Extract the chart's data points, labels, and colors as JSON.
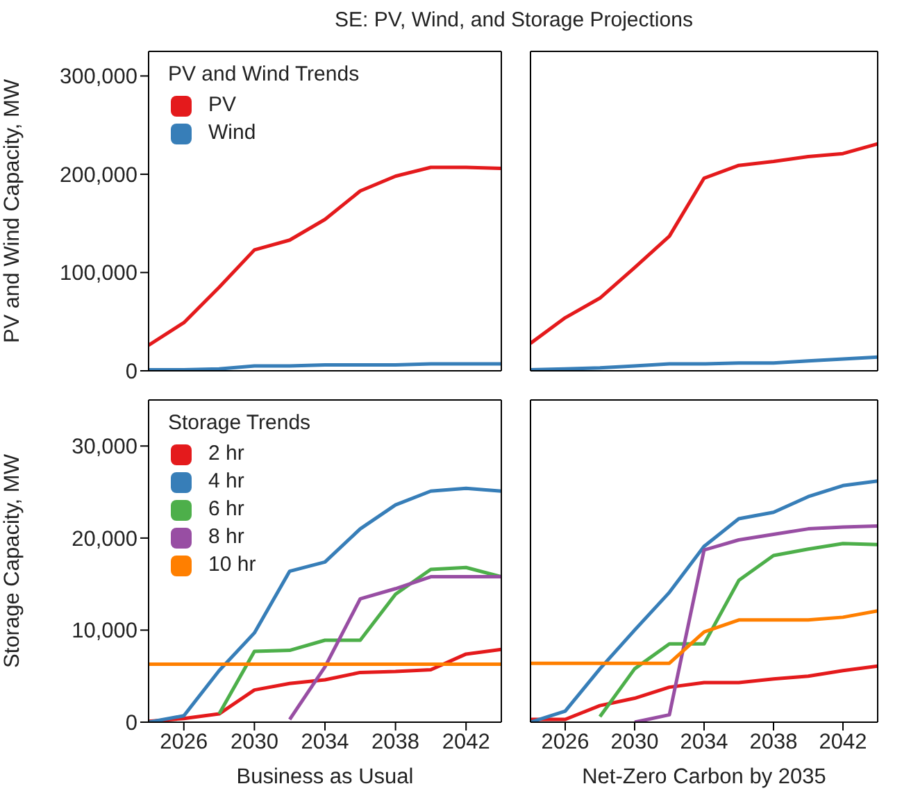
{
  "chart_data": [
    {
      "type": "line",
      "title": "SE: PV, Wind, and Storage Projections",
      "ylabel": "PV and Wind Capacity, MW",
      "legend_title": "PV and Wind Trends",
      "legend": "top left",
      "grid": false,
      "tick_labels": "y",
      "x": [
        2024,
        2026,
        2028,
        2030,
        2032,
        2034,
        2036,
        2038,
        2040,
        2042,
        2044
      ],
      "xlim": [
        2024,
        2044
      ],
      "ylim": [
        0,
        325000
      ],
      "yticks": [
        0,
        {
          "value": 100000,
          "label": "100,000"
        },
        {
          "value": 200000,
          "label": "200,000"
        },
        {
          "value": 300000,
          "label": "300,000"
        }
      ],
      "series": [
        {
          "name": "PV",
          "color": "#e41a1c",
          "values": [
            26000,
            49000,
            85000,
            123000,
            133000,
            154000,
            183000,
            198000,
            207000,
            207000,
            206000
          ]
        },
        {
          "name": "Wind",
          "color": "#377eb8",
          "values": [
            1000,
            1000,
            2000,
            5000,
            5000,
            6000,
            6000,
            6000,
            7000,
            7000,
            7000
          ]
        }
      ]
    },
    {
      "type": "line",
      "grid": false,
      "tick_labels": false,
      "x": [
        2024,
        2026,
        2028,
        2030,
        2032,
        2034,
        2036,
        2038,
        2040,
        2042,
        2044
      ],
      "xlim": [
        2024,
        2044
      ],
      "ylim": [
        0,
        325000
      ],
      "series": [
        {
          "color": "#e41a1c",
          "values": [
            28000,
            54000,
            74000,
            105000,
            137000,
            196000,
            209000,
            213000,
            218000,
            221000,
            231000
          ]
        },
        {
          "color": "#377eb8",
          "values": [
            1000,
            2000,
            3000,
            5000,
            7000,
            7000,
            8000,
            8000,
            10000,
            12000,
            14000
          ]
        }
      ]
    },
    {
      "type": "line",
      "ylabel": "Storage Capacity, MW",
      "xlabel": "Business as Usual",
      "legend_title": "Storage Trends",
      "legend": "top left",
      "grid": false,
      "x": [
        2024,
        2026,
        2028,
        2030,
        2032,
        2034,
        2036,
        2038,
        2040,
        2042,
        2044
      ],
      "xlim": [
        2024,
        2044
      ],
      "xticks": [
        2026,
        2030,
        2034,
        2038,
        2042
      ],
      "ylim": [
        0,
        35000
      ],
      "yticks": [
        0,
        {
          "value": 10000,
          "label": "10,000"
        },
        {
          "value": 20000,
          "label": "20,000"
        },
        {
          "value": 30000,
          "label": "30,000"
        }
      ],
      "series": [
        {
          "name": "2 hr",
          "color": "#e41a1c",
          "values": [
            100,
            400,
            900,
            3500,
            4200,
            4600,
            5400,
            5500,
            5700,
            7400,
            7900
          ]
        },
        {
          "name": "4 hr",
          "color": "#377eb8",
          "values": [
            0,
            700,
            5600,
            9700,
            16400,
            17400,
            21000,
            23600,
            25100,
            25400,
            25100
          ]
        },
        {
          "name": "6 hr",
          "color": "#4daf4a",
          "values": [
            null,
            null,
            900,
            7700,
            7800,
            8900,
            8900,
            13900,
            16600,
            16800,
            15800
          ]
        },
        {
          "name": "8 hr",
          "color": "#984ea3",
          "values": [
            null,
            null,
            null,
            null,
            300,
            6000,
            13400,
            14500,
            15800,
            15800,
            15800
          ]
        },
        {
          "name": "10 hr",
          "color": "#ff7f00",
          "values": [
            6300,
            6300,
            6300,
            6300,
            6300,
            6300,
            6300,
            6300,
            6300,
            6300,
            6300
          ]
        }
      ]
    },
    {
      "type": "line",
      "xlabel": "Net-Zero Carbon by 2035",
      "grid": false,
      "tick_labels": "x",
      "x": [
        2024,
        2026,
        2028,
        2030,
        2032,
        2034,
        2036,
        2038,
        2040,
        2042,
        2044
      ],
      "xlim": [
        2024,
        2044
      ],
      "xticks": [
        2026,
        2030,
        2034,
        2038,
        2042
      ],
      "ylim": [
        0,
        35000
      ],
      "series": [
        {
          "color": "#e41a1c",
          "values": [
            300,
            300,
            1800,
            2600,
            3800,
            4300,
            4300,
            4700,
            5000,
            5600,
            6100
          ]
        },
        {
          "color": "#377eb8",
          "values": [
            0,
            1200,
            5800,
            10000,
            14100,
            19100,
            22100,
            22800,
            24500,
            25700,
            26200
          ]
        },
        {
          "color": "#4daf4a",
          "values": [
            null,
            null,
            600,
            5800,
            8500,
            8500,
            15400,
            18100,
            18800,
            19400,
            19300
          ]
        },
        {
          "color": "#984ea3",
          "values": [
            null,
            null,
            null,
            0,
            800,
            18700,
            19800,
            20400,
            21000,
            21200,
            21300
          ]
        },
        {
          "color": "#ff7f00",
          "values": [
            6400,
            6400,
            6400,
            6400,
            6400,
            9800,
            11100,
            11100,
            11100,
            11400,
            12100
          ]
        }
      ]
    }
  ]
}
